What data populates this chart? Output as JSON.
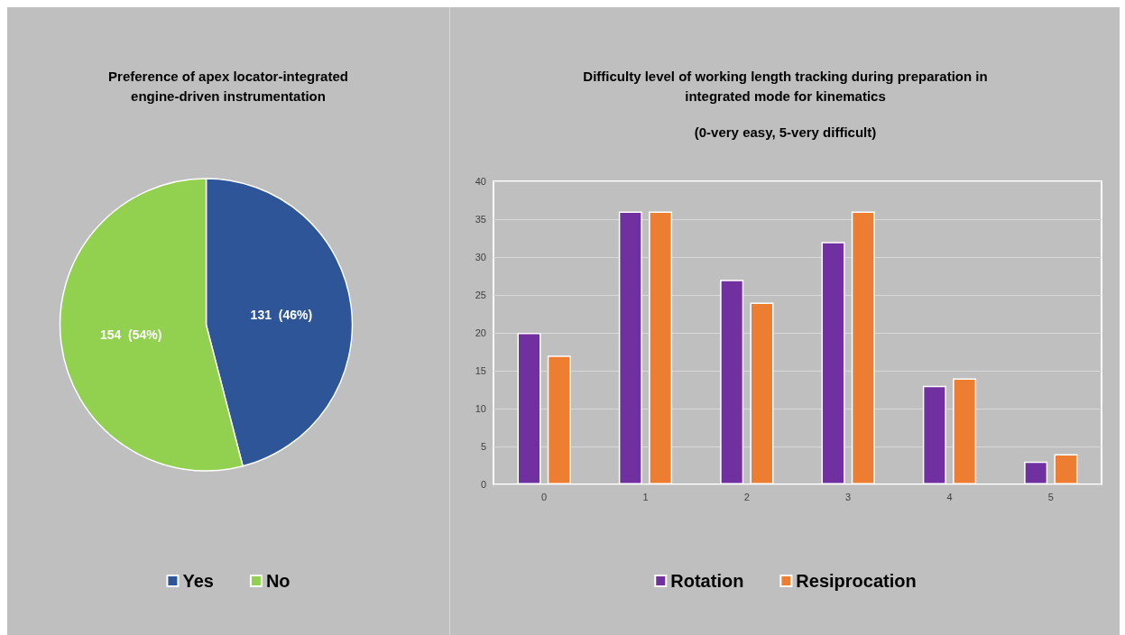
{
  "chart_data": [
    {
      "type": "pie",
      "title": "Preference of apex locator-integrated\nengine-driven instrumentation",
      "categories": [
        "Yes",
        "No"
      ],
      "values": [
        131,
        154
      ],
      "colors": [
        "#2e5597",
        "#92d050"
      ],
      "value_labels": [
        "131  (46%)",
        "154  (54%)"
      ],
      "legend": "bottom"
    },
    {
      "type": "bar",
      "title": "Difficulty level of working length tracking during preparation in\nintegrated mode for kinematics",
      "subtitle": "(0-very easy, 5-very difficult)",
      "categories": [
        "0",
        "1",
        "2",
        "3",
        "4",
        "5"
      ],
      "series": [
        {
          "name": "Rotation",
          "color": "#7030a0",
          "values": [
            20,
            36,
            27,
            32,
            13,
            3
          ]
        },
        {
          "name": "Resiprocation",
          "color": "#ed7d31",
          "values": [
            17,
            36,
            24,
            36,
            14,
            4
          ]
        }
      ],
      "ylim": [
        0,
        40
      ],
      "yticks": [
        0,
        5,
        10,
        15,
        20,
        25,
        30,
        35,
        40
      ],
      "grid": "y",
      "legend": "bottom"
    }
  ]
}
